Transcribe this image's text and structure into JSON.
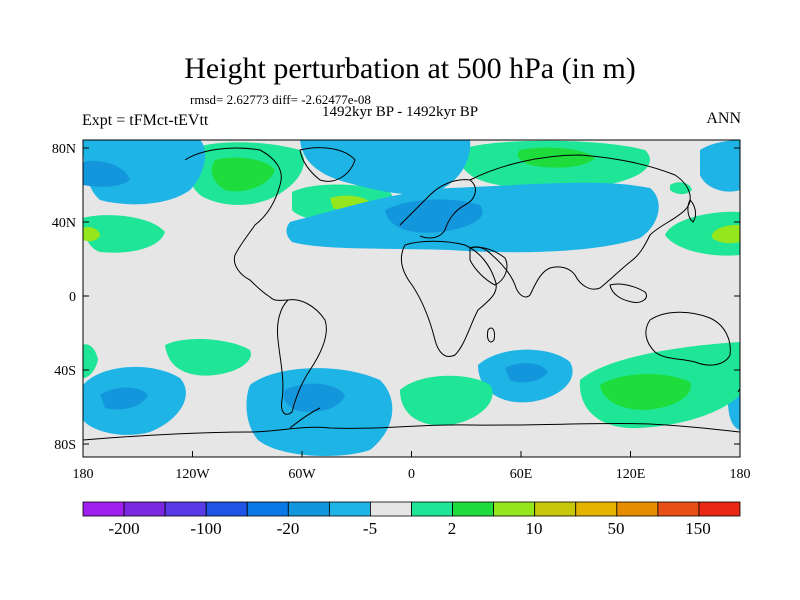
{
  "title": "Height perturbation at 500 hPa (in m)",
  "subtitle": {
    "rmsd": "rmsd= 2.62773 diff= -2.62477e-08",
    "experiment": "Expt = tFMct-tEVtt",
    "period": "1492kyr BP - 1492kyr BP",
    "season": "ANN"
  },
  "axes": {
    "x_ticks": [
      "180",
      "120W",
      "60W",
      "0",
      "60E",
      "120E",
      "180"
    ],
    "y_ticks": [
      "80N",
      "40N",
      "0",
      "40S",
      "80S"
    ]
  },
  "colorbar": {
    "colors": [
      "#a020f0",
      "#7b28e0",
      "#5a3ce6",
      "#1e55e6",
      "#0a78e6",
      "#1496dc",
      "#1eb4e6",
      "#e6e6e6",
      "#1ee696",
      "#1edc3c",
      "#96e61e",
      "#c8c80a",
      "#e6b400",
      "#e68c00",
      "#e65014",
      "#e62814"
    ],
    "labels": [
      "-200",
      "-100",
      "-20",
      "-5",
      "2",
      "10",
      "50",
      "150"
    ]
  }
}
